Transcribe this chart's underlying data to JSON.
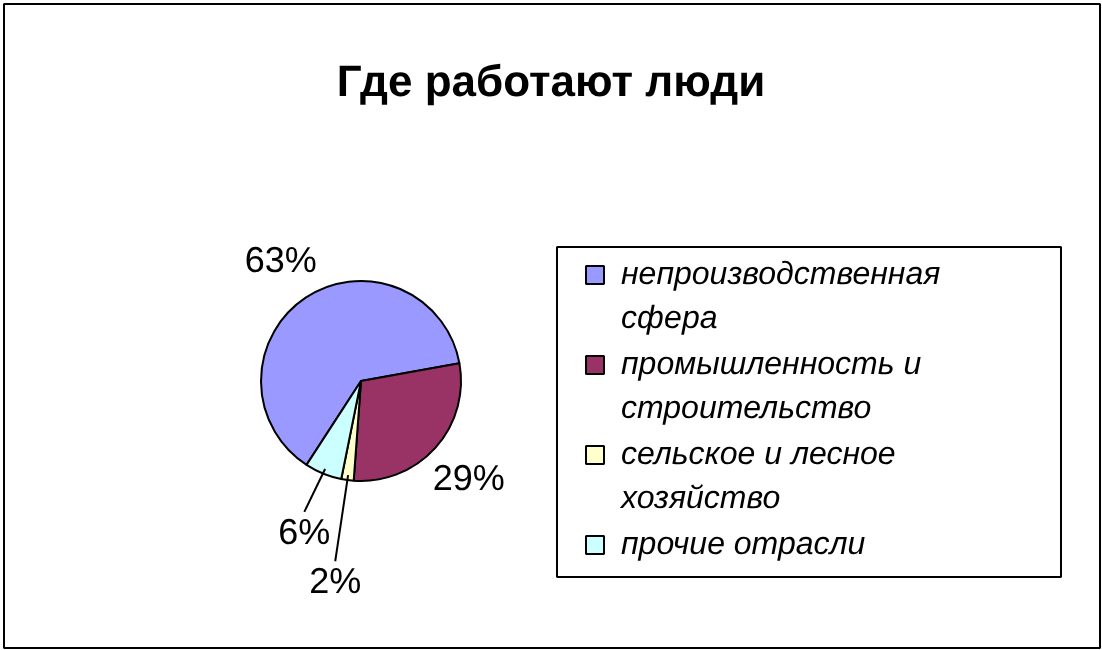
{
  "chart_data": {
    "type": "pie",
    "title": "Где работают люди",
    "categories": [
      "непроизводственная сфера",
      "промышленность и строительство",
      "сельское и лесное хозяйство",
      "прочие отрасли"
    ],
    "values": [
      63,
      29,
      2,
      6
    ],
    "colors": [
      "#9999ff",
      "#993366",
      "#ffffcc",
      "#ccffff"
    ],
    "value_labels": [
      "63%",
      "29%",
      "2%",
      "6%"
    ],
    "legend": "right"
  }
}
